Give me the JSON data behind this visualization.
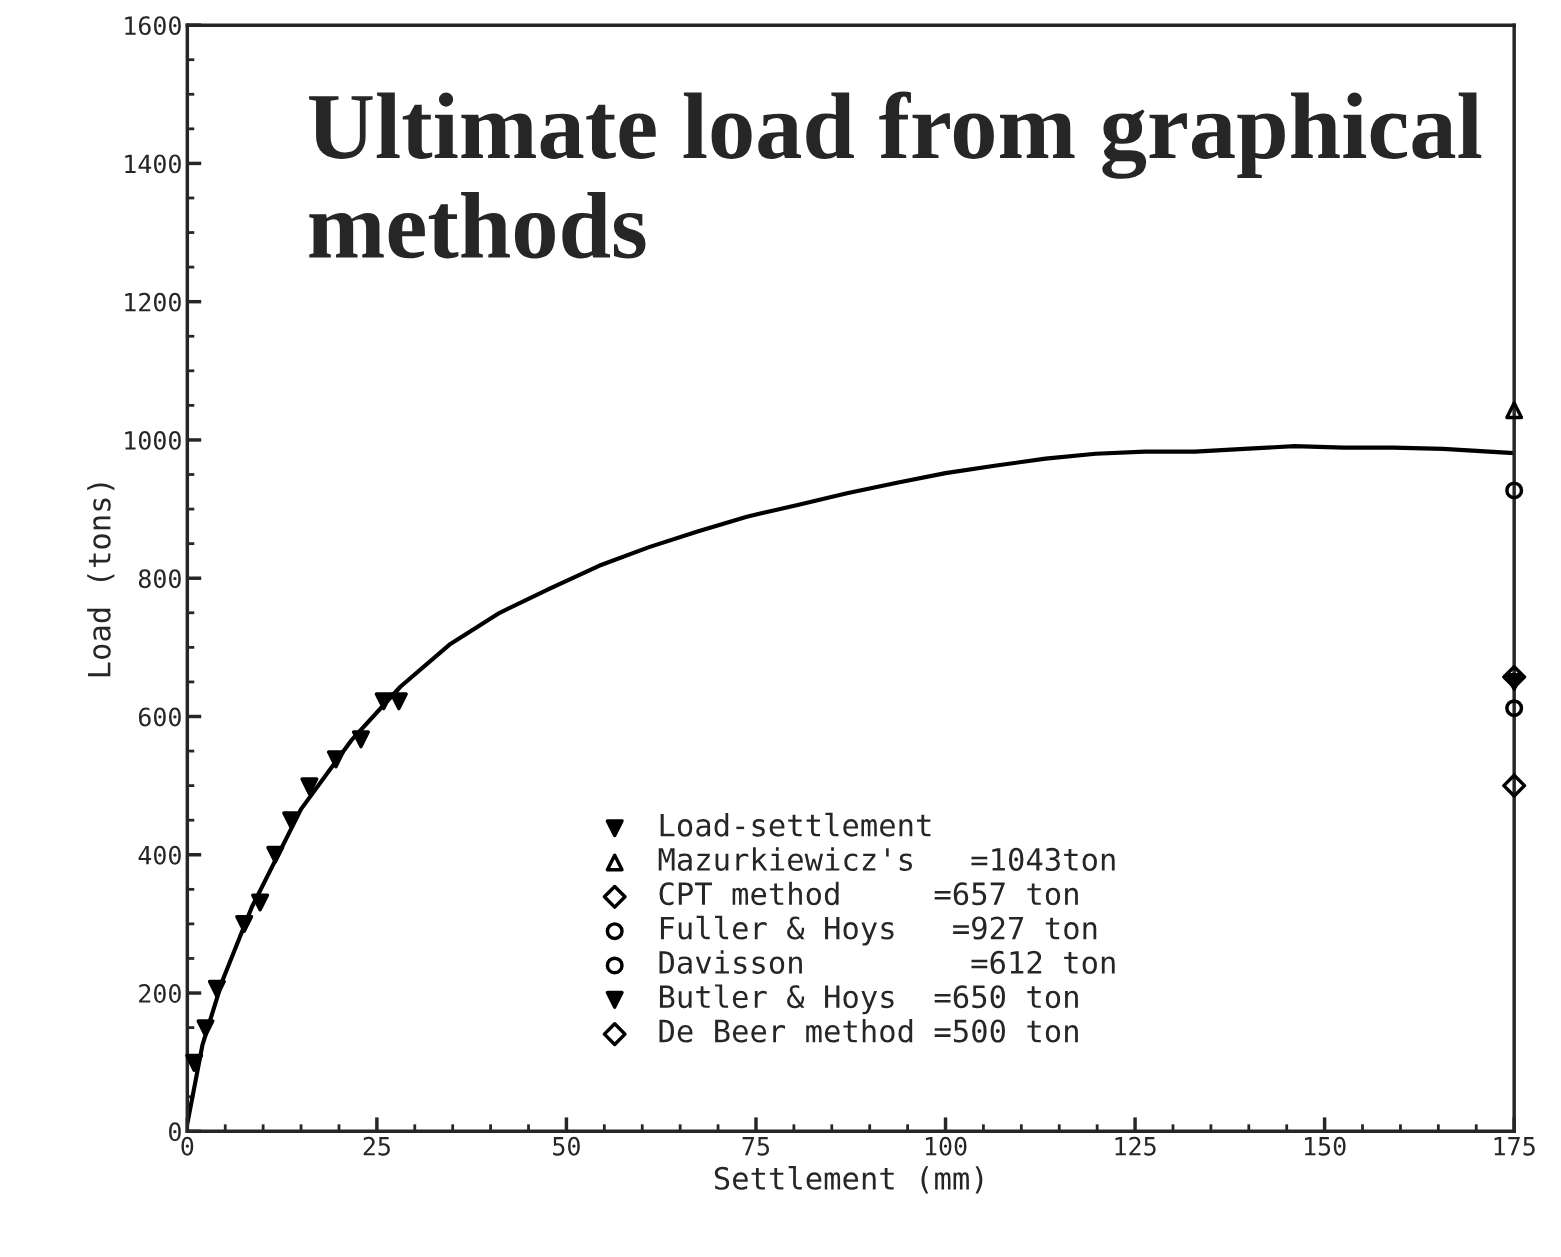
{
  "chart_data": {
    "type": "line",
    "title": "Ultimate load from graphical methods",
    "xlabel": "Settlement (mm)",
    "ylabel": "Load (tons)",
    "xlim": [
      0,
      175
    ],
    "xticks": [
      0,
      25,
      50,
      75,
      100,
      125,
      150,
      175
    ],
    "ylim": [
      0,
      1600
    ],
    "yticks": [
      0,
      200,
      400,
      600,
      800,
      1000,
      1200,
      1400,
      1600
    ],
    "grid": false,
    "legend": "bottom",
    "series": [
      {
        "color": "#000000",
        "marker": "none",
        "x": [
          0,
          2,
          4.6,
          8.5,
          15,
          21.6,
          28.1,
          34.7,
          41.2,
          47.8,
          54.3,
          60.9,
          67.4,
          73.8,
          80.5,
          87,
          93.6,
          100,
          106.7,
          113.2,
          119.8,
          126.3,
          132.9,
          139.4,
          146,
          152.5,
          159,
          165.6,
          175
        ],
        "values": [
          11,
          125,
          217,
          324,
          466,
          565,
          643,
          705,
          750,
          785,
          818,
          845,
          868,
          889,
          906,
          923,
          938,
          952,
          963,
          973,
          980,
          983,
          983,
          987,
          991,
          989,
          989,
          987,
          981
        ]
      },
      {
        "type": "scatter",
        "name": "Load-settlement",
        "color": "#000000",
        "marker": "triangle_down",
        "x": [
          0.9,
          2.4,
          3.9,
          7.5,
          9.6,
          11.6,
          13.7,
          16.1,
          19.6,
          22.9,
          25.9,
          27.9
        ],
        "values": [
          99,
          149,
          206,
          300,
          331,
          400,
          450,
          499,
          538,
          567,
          622,
          622
        ]
      },
      {
        "type": "scatter",
        "name": "Mazurkiewicz's   =1043ton",
        "color": "#000000",
        "marker": "triangle",
        "x": [
          175
        ],
        "values": [
          1043
        ]
      },
      {
        "type": "scatter",
        "name": "CPT method     =657 ton",
        "color": "#000000",
        "marker": "diamond",
        "x": [
          175
        ],
        "values": [
          657
        ]
      },
      {
        "type": "scatter",
        "name": "Fuller & Hoys   =927 ton",
        "color": "#000000",
        "marker": "circle",
        "x": [
          175
        ],
        "values": [
          927
        ]
      },
      {
        "type": "scatter",
        "name": "Davisson         =612 ton",
        "color": "#000000",
        "marker": "circle",
        "x": [
          175
        ],
        "values": [
          612
        ]
      },
      {
        "type": "scatter",
        "name": "Butler & Hoys  =650 ton",
        "color": "#000000",
        "marker": "triangle_down",
        "x": [
          175
        ],
        "values": [
          650
        ]
      },
      {
        "type": "scatter",
        "name": "De Beer method =500 ton",
        "color": "#000000",
        "marker": "diamond",
        "x": [
          175
        ],
        "values": [
          500
        ]
      }
    ]
  }
}
